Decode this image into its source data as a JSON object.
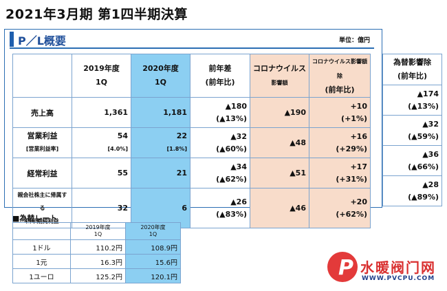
{
  "title": "2021年3月期 第1四半期決算",
  "pl": {
    "heading": "P／L概要",
    "unit": "単位：億円",
    "headers": {
      "y2019": "2019年度",
      "y2020": "2020年度",
      "period": "1Q",
      "diff": "前年差",
      "yoy": "(前年比)",
      "corona": "コロナウイルス",
      "corona_amount": "影響額",
      "corona_excl": "コロナウイルス影響額除",
      "fx_impact": "為替影響除"
    },
    "rows": [
      {
        "label": "売上高",
        "sub": "",
        "v2019": "1,361",
        "v2019_sub": "",
        "v2020": "1,181",
        "v2020_sub": "",
        "diff": "▲180",
        "diff_pct": "(▲13%)",
        "corona": "▲190",
        "excl": "+10",
        "excl_pct": "(+1%)",
        "fx": "▲174",
        "fx_pct": "(▲13%)"
      },
      {
        "label": "営業利益",
        "sub": "[営業利益率]",
        "v2019": "54",
        "v2019_sub": "[4.0%]",
        "v2020": "22",
        "v2020_sub": "[1.8%]",
        "diff": "▲32",
        "diff_pct": "(▲60%)",
        "corona": "▲48",
        "excl": "+16",
        "excl_pct": "(+29%)",
        "fx": "▲32",
        "fx_pct": "(▲59%)"
      },
      {
        "label": "経常利益",
        "sub": "",
        "v2019": "55",
        "v2019_sub": "",
        "v2020": "21",
        "v2020_sub": "",
        "diff": "▲34",
        "diff_pct": "(▲62%)",
        "corona": "▲51",
        "excl": "+17",
        "excl_pct": "(+31%)",
        "fx": "▲36",
        "fx_pct": "(▲66%)"
      },
      {
        "label": "親会社株主に帰属する",
        "sub": "四半期純利益",
        "v2019": "32",
        "v2019_sub": "",
        "v2020": "6",
        "v2020_sub": "",
        "diff": "▲26",
        "diff_pct": "(▲83%)",
        "corona": "▲46",
        "excl": "+20",
        "excl_pct": "(+62%)",
        "fx": "▲28",
        "fx_pct": "(▲89%)"
      }
    ]
  },
  "fx": {
    "heading": "■為替レート",
    "headers": {
      "y2019": "2019年度",
      "y2020": "2020年度",
      "period": "1Q"
    },
    "rows": [
      {
        "label": "1ドル",
        "v2019": "110.2円",
        "v2020": "108.9円"
      },
      {
        "label": "1元",
        "v2019": "16.3円",
        "v2020": "15.6円"
      },
      {
        "label": "1ユーロ",
        "v2019": "125.2円",
        "v2020": "120.1円"
      }
    ]
  },
  "watermark": {
    "cn": "水暖阀门网",
    "url": "WWW.PVCPU.COM"
  }
}
